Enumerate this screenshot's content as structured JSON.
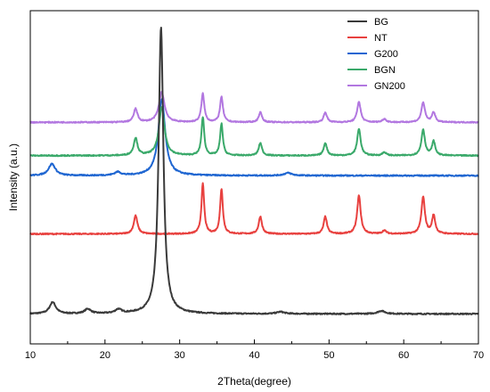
{
  "chart_data": {
    "type": "line",
    "xlabel": "2Theta(degree)",
    "ylabel": "Intensity (a.u.)",
    "xlim": [
      10,
      70
    ],
    "x_ticks": [
      "10",
      "20",
      "30",
      "40",
      "50",
      "60",
      "70"
    ],
    "y_ticks_labeled": false,
    "grid": false,
    "legend_position": "top-right",
    "series": [
      {
        "name": "BG",
        "color": "#3a3a3a",
        "baseline": 0.09,
        "peaks": [
          [
            13.0,
            0.035,
            0.5
          ],
          [
            17.7,
            0.014,
            0.5
          ],
          [
            21.8,
            0.012,
            0.5
          ],
          [
            27.5,
            0.86,
            0.38
          ],
          [
            43.5,
            0.006,
            0.6
          ],
          [
            57.0,
            0.009,
            0.6
          ]
        ]
      },
      {
        "name": "NT",
        "color": "#e8413f",
        "baseline": 0.33,
        "peaks": [
          [
            24.1,
            0.055,
            0.3
          ],
          [
            33.1,
            0.15,
            0.22
          ],
          [
            35.6,
            0.135,
            0.22
          ],
          [
            40.8,
            0.052,
            0.26
          ],
          [
            49.5,
            0.052,
            0.26
          ],
          [
            54.0,
            0.115,
            0.28
          ],
          [
            57.4,
            0.01,
            0.3
          ],
          [
            62.6,
            0.11,
            0.28
          ],
          [
            64.0,
            0.055,
            0.26
          ]
        ]
      },
      {
        "name": "G200",
        "color": "#1f66d1",
        "baseline": 0.505,
        "peaks": [
          [
            12.9,
            0.035,
            0.55
          ],
          [
            21.7,
            0.01,
            0.5
          ],
          [
            27.6,
            0.23,
            0.55
          ],
          [
            44.5,
            0.008,
            0.6
          ]
        ]
      },
      {
        "name": "BGN",
        "color": "#3aa96a",
        "baseline": 0.565,
        "peaks": [
          [
            24.1,
            0.052,
            0.3
          ],
          [
            27.6,
            0.145,
            0.45
          ],
          [
            33.1,
            0.115,
            0.22
          ],
          [
            35.6,
            0.095,
            0.22
          ],
          [
            40.8,
            0.038,
            0.26
          ],
          [
            49.5,
            0.038,
            0.26
          ],
          [
            54.0,
            0.08,
            0.28
          ],
          [
            57.4,
            0.01,
            0.3
          ],
          [
            62.6,
            0.078,
            0.28
          ],
          [
            64.0,
            0.042,
            0.26
          ]
        ]
      },
      {
        "name": "GN200",
        "color": "#b277e0",
        "baseline": 0.665,
        "peaks": [
          [
            24.1,
            0.04,
            0.3
          ],
          [
            27.6,
            0.09,
            0.45
          ],
          [
            33.1,
            0.085,
            0.24
          ],
          [
            35.6,
            0.075,
            0.24
          ],
          [
            40.8,
            0.03,
            0.26
          ],
          [
            49.5,
            0.03,
            0.26
          ],
          [
            54.0,
            0.062,
            0.28
          ],
          [
            57.4,
            0.01,
            0.3
          ],
          [
            62.6,
            0.06,
            0.28
          ],
          [
            64.0,
            0.03,
            0.26
          ]
        ]
      }
    ]
  }
}
